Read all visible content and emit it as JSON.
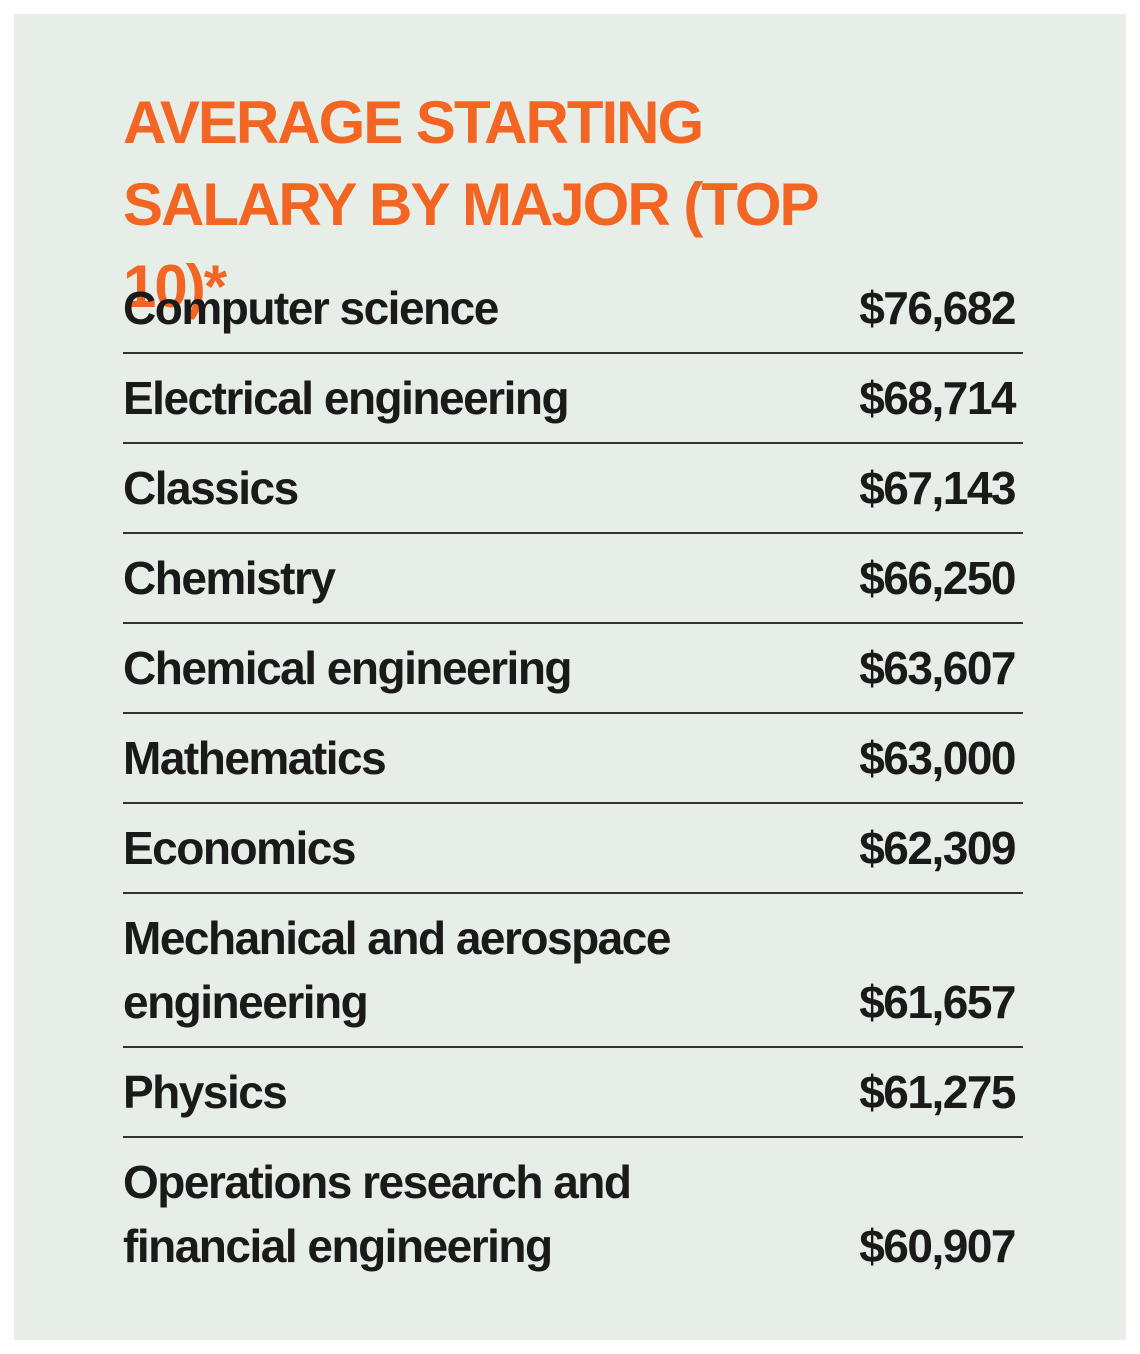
{
  "header": {
    "title": "AVERAGE STARTING SALARY BY MAJOR (TOP 10)*"
  },
  "table": {
    "rows": [
      [
        "Computer science",
        "$76,682"
      ],
      [
        "Electrical engineering",
        "$68,714"
      ],
      [
        "Classics",
        "$67,143"
      ],
      [
        "Chemistry",
        "$66,250"
      ],
      [
        "Chemical engineering",
        "$63,607"
      ],
      [
        "Mathematics",
        "$63,000"
      ],
      [
        "Economics",
        "$62,309"
      ],
      [
        "Mechanical and aerospace engineering",
        "$61,657"
      ],
      [
        "Physics",
        "$61,275"
      ],
      [
        "Operations research and financial engineering",
        "$60,907"
      ]
    ]
  }
}
